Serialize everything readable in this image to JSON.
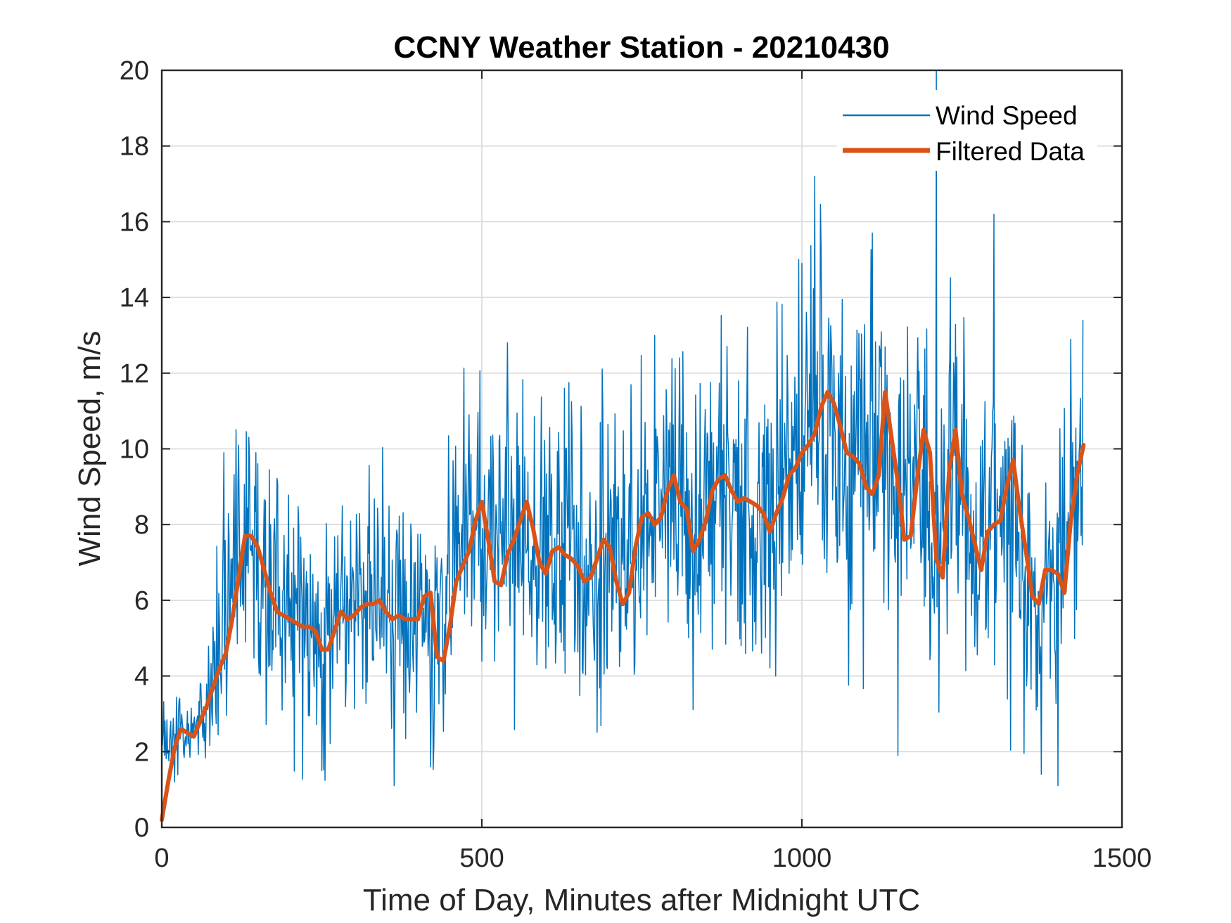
{
  "colors": {
    "wind_speed": "#0072BD",
    "filtered": "#D95319",
    "grid": "#d9d9d9",
    "axis": "#262626"
  },
  "chart_data": {
    "type": "line",
    "title": "CCNY Weather Station - 20210430",
    "xlabel": "Time of Day, Minutes after Midnight UTC",
    "ylabel": "Wind Speed, m/s",
    "xlim": [
      0,
      1500
    ],
    "ylim": [
      0,
      20
    ],
    "xticks": [
      0,
      500,
      1000,
      1500
    ],
    "yticks": [
      0,
      2,
      4,
      6,
      8,
      10,
      12,
      14,
      16,
      18,
      20
    ],
    "grid": true,
    "legend": {
      "position": "top-right",
      "entries": [
        "Wind Speed",
        "Filtered Data"
      ]
    },
    "series": [
      {
        "name": "Wind Speed",
        "style": "thin-line",
        "x_start": 0,
        "x_step": 1,
        "trend_x": [
          0,
          10,
          20,
          30,
          40,
          50,
          60,
          70,
          80,
          90,
          100,
          110,
          120,
          130,
          140,
          150,
          160,
          170,
          180,
          200,
          220,
          240,
          250,
          260,
          270,
          280,
          290,
          300,
          320,
          340,
          360,
          380,
          400,
          410,
          420,
          430,
          440,
          450,
          460,
          470,
          480,
          490,
          500,
          510,
          520,
          530,
          540,
          560,
          570,
          580,
          590,
          600,
          610,
          620,
          640,
          660,
          680,
          700,
          710,
          720,
          730,
          740,
          760,
          770,
          780,
          790,
          800,
          810,
          820,
          830,
          840,
          850,
          860,
          870,
          880,
          890,
          900,
          910,
          920,
          930,
          940,
          950,
          960,
          970,
          980,
          990,
          1000,
          1010,
          1020,
          1030,
          1040,
          1050,
          1060,
          1070,
          1080,
          1090,
          1100,
          1110,
          1120,
          1130,
          1140,
          1150,
          1160,
          1170,
          1180,
          1190,
          1200,
          1210,
          1220,
          1230,
          1240,
          1250,
          1260,
          1270,
          1280,
          1290,
          1300,
          1310,
          1320,
          1330,
          1340,
          1350,
          1360,
          1370,
          1380,
          1390,
          1400,
          1410,
          1420,
          1430,
          1440
        ],
        "trend_y": [
          2.5,
          2.3,
          2.5,
          2.6,
          2.5,
          2.6,
          2.9,
          3.3,
          3.9,
          4.5,
          5.5,
          6.5,
          7.5,
          7.7,
          7.3,
          6.7,
          6.2,
          5.9,
          5.6,
          5.4,
          5.3,
          5.2,
          4.9,
          5.0,
          5.4,
          5.6,
          5.5,
          5.6,
          5.8,
          5.9,
          5.6,
          5.6,
          5.5,
          6.0,
          5.2,
          4.8,
          5.4,
          6.3,
          7.0,
          7.6,
          8.2,
          7.6,
          6.6,
          6.9,
          7.4,
          7.8,
          8.1,
          8.2,
          7.6,
          6.9,
          7.3,
          7.5,
          7.3,
          7.2,
          7.1,
          6.9,
          6.9,
          7.2,
          6.9,
          6.5,
          6.4,
          6.9,
          7.6,
          8.0,
          8.1,
          8.5,
          8.8,
          8.6,
          8.1,
          8.0,
          8.0,
          8.5,
          8.8,
          8.9,
          8.9,
          8.6,
          8.4,
          8.5,
          8.3,
          8.1,
          8.2,
          8.6,
          9.0,
          9.4,
          9.7,
          9.9,
          10.1,
          10.6,
          10.9,
          11.0,
          10.6,
          10.1,
          9.7,
          9.4,
          9.2,
          9.4,
          9.8,
          10.3,
          10.1,
          9.2,
          8.4,
          8.8,
          9.4,
          9.6,
          8.9,
          7.8,
          7.3,
          7.5,
          8.8,
          9.8,
          9.5,
          8.5,
          7.9,
          7.6,
          7.3,
          7.5,
          7.9,
          8.4,
          8.9,
          8.6,
          7.6,
          6.8,
          6.3,
          6.2,
          6.5,
          6.7,
          6.6,
          6.9,
          8.0,
          9.1,
          9.6
        ],
        "summary": {
          "min": 1.1,
          "max": 20.0,
          "samples": 1440
        },
        "peaks_x": [
          97,
          120,
          480,
          540,
          770,
          1000,
          1020,
          1110,
          1210,
          1300,
          1400
        ],
        "peaks_y": [
          9.9,
          10.1,
          10.9,
          12.8,
          13.0,
          14.9,
          17.2,
          15.7,
          20.0,
          16.2,
          14.4
        ],
        "troughs_x": [
          20,
          250,
          420,
          1150,
          1400
        ],
        "troughs_y": [
          1.2,
          1.5,
          1.6,
          1.9,
          1.1
        ]
      },
      {
        "name": "Filtered Data",
        "style": "thick-line",
        "x": [
          0,
          10,
          20,
          30,
          40,
          50,
          60,
          70,
          80,
          90,
          100,
          110,
          120,
          130,
          140,
          150,
          160,
          170,
          180,
          190,
          200,
          210,
          220,
          230,
          240,
          250,
          260,
          270,
          280,
          290,
          300,
          310,
          320,
          330,
          340,
          350,
          360,
          370,
          380,
          390,
          400,
          410,
          420,
          430,
          440,
          450,
          460,
          470,
          480,
          490,
          500,
          510,
          520,
          530,
          540,
          550,
          560,
          570,
          580,
          590,
          600,
          610,
          620,
          630,
          640,
          650,
          660,
          670,
          680,
          690,
          700,
          710,
          720,
          730,
          740,
          750,
          760,
          770,
          780,
          790,
          800,
          810,
          820,
          830,
          840,
          850,
          860,
          870,
          880,
          890,
          900,
          910,
          920,
          930,
          940,
          950,
          960,
          970,
          980,
          990,
          1000,
          1010,
          1020,
          1030,
          1040,
          1050,
          1060,
          1070,
          1080,
          1090,
          1100,
          1110,
          1120,
          1130,
          1140,
          1150,
          1160,
          1170,
          1180,
          1190,
          1200,
          1210,
          1220,
          1230,
          1240,
          1250,
          1260,
          1270,
          1280,
          1290,
          1300,
          1310,
          1320,
          1330,
          1340,
          1350,
          1360,
          1370,
          1380,
          1390,
          1400,
          1410,
          1420,
          1430,
          1440
        ],
        "y": [
          0.2,
          1.2,
          2.1,
          2.6,
          2.5,
          2.4,
          2.8,
          3.2,
          3.7,
          4.2,
          4.6,
          5.5,
          6.6,
          7.7,
          7.7,
          7.4,
          6.8,
          6.2,
          5.7,
          5.6,
          5.5,
          5.4,
          5.3,
          5.3,
          5.2,
          4.7,
          4.7,
          5.2,
          5.7,
          5.5,
          5.6,
          5.8,
          5.9,
          5.9,
          6.0,
          5.7,
          5.5,
          5.6,
          5.5,
          5.5,
          5.5,
          6.1,
          6.2,
          4.5,
          4.4,
          5.3,
          6.5,
          6.9,
          7.3,
          8.1,
          8.6,
          7.6,
          6.5,
          6.4,
          7.2,
          7.6,
          8.1,
          8.6,
          7.9,
          7.0,
          6.7,
          7.3,
          7.4,
          7.2,
          7.1,
          6.9,
          6.5,
          6.6,
          7.1,
          7.6,
          7.4,
          6.5,
          5.9,
          6.2,
          7.4,
          8.2,
          8.3,
          8.0,
          8.2,
          8.9,
          9.3,
          8.6,
          8.4,
          7.3,
          7.6,
          8.1,
          8.9,
          9.2,
          9.3,
          8.9,
          8.6,
          8.7,
          8.6,
          8.5,
          8.3,
          7.8,
          8.3,
          8.7,
          9.3,
          9.5,
          9.9,
          10.1,
          10.4,
          11.1,
          11.5,
          11.2,
          10.6,
          9.9,
          9.8,
          9.6,
          9.0,
          8.8,
          9.3,
          11.5,
          10.3,
          9.1,
          7.6,
          7.7,
          9.2,
          10.5,
          9.9,
          7.1,
          6.6,
          9.4,
          10.5,
          8.8,
          8.2,
          7.5,
          6.8,
          7.8,
          8.0,
          8.1,
          9.0,
          9.7,
          8.4,
          7.3,
          6.1,
          5.9,
          6.8,
          6.8,
          6.7,
          6.2,
          8.1,
          9.3,
          10.1
        ]
      }
    ]
  }
}
